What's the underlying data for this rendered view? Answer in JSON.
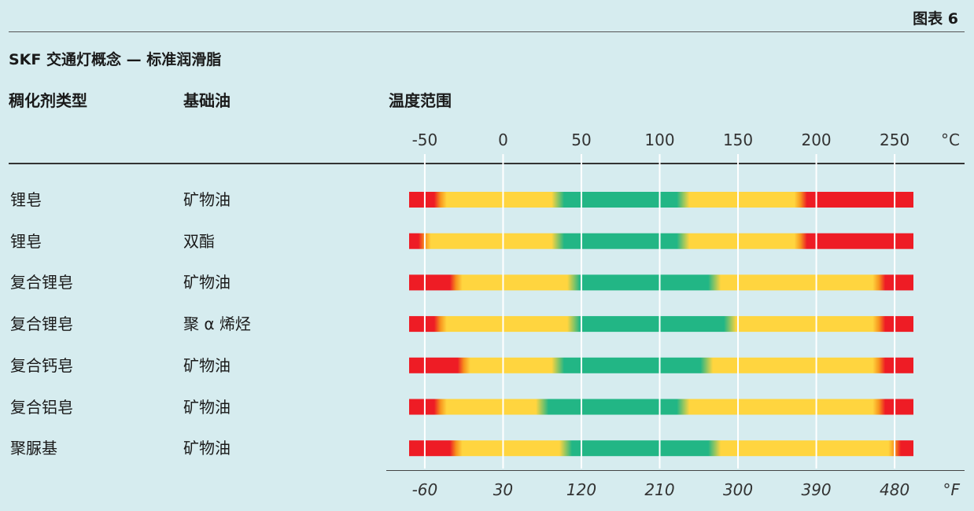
{
  "figure_label": "图表 6",
  "title": "SKF 交通灯概念 — 标准润滑脂",
  "headers": {
    "thickener": "稠化剂类型",
    "base_oil": "基础油",
    "temperature": "温度范围"
  },
  "colors": {
    "background": "#d6ecef",
    "red": "#ee1c25",
    "orange": "#f7941d",
    "yellow": "#ffd53f",
    "green": "#22b685",
    "gridline": "#ffffff"
  },
  "chart_data": {
    "type": "range-bar",
    "x_axis_top": {
      "unit": "°C",
      "ticks": [
        "-50",
        "0",
        "50",
        "100",
        "150",
        "200",
        "250"
      ]
    },
    "x_axis_bottom": {
      "unit": "°F",
      "ticks": [
        "-60",
        "30",
        "120",
        "210",
        "300",
        "390",
        "480"
      ]
    },
    "xlim_c": [
      -60,
      262
    ],
    "rows": [
      {
        "thickener": "锂皂",
        "base_oil": "矿物油",
        "zones": [
          {
            "color": "red",
            "from": -60,
            "to": -40
          },
          {
            "color": "yellow",
            "from": -40,
            "to": 35
          },
          {
            "color": "green",
            "from": 35,
            "to": 115
          },
          {
            "color": "yellow",
            "from": 115,
            "to": 190
          },
          {
            "color": "red",
            "from": 190,
            "to": 262
          }
        ]
      },
      {
        "thickener": "锂皂",
        "base_oil": "双酯",
        "zones": [
          {
            "color": "red",
            "from": -60,
            "to": -50
          },
          {
            "color": "yellow",
            "from": -50,
            "to": 35
          },
          {
            "color": "green",
            "from": 35,
            "to": 115
          },
          {
            "color": "yellow",
            "from": 115,
            "to": 190
          },
          {
            "color": "red",
            "from": 190,
            "to": 262
          }
        ]
      },
      {
        "thickener": "复合锂皂",
        "base_oil": "矿物油",
        "zones": [
          {
            "color": "red",
            "from": -60,
            "to": -30
          },
          {
            "color": "yellow",
            "from": -30,
            "to": 45
          },
          {
            "color": "green",
            "from": 45,
            "to": 135
          },
          {
            "color": "yellow",
            "from": 135,
            "to": 240
          },
          {
            "color": "red",
            "from": 240,
            "to": 262
          }
        ]
      },
      {
        "thickener": "复合锂皂",
        "base_oil": "聚 α 烯烃",
        "zones": [
          {
            "color": "red",
            "from": -60,
            "to": -40
          },
          {
            "color": "yellow",
            "from": -40,
            "to": 45
          },
          {
            "color": "green",
            "from": 45,
            "to": 145
          },
          {
            "color": "yellow",
            "from": 145,
            "to": 240
          },
          {
            "color": "red",
            "from": 240,
            "to": 262
          }
        ]
      },
      {
        "thickener": "复合钙皂",
        "base_oil": "矿物油",
        "zones": [
          {
            "color": "red",
            "from": -60,
            "to": -25
          },
          {
            "color": "yellow",
            "from": -25,
            "to": 35
          },
          {
            "color": "green",
            "from": 35,
            "to": 130
          },
          {
            "color": "yellow",
            "from": 130,
            "to": 240
          },
          {
            "color": "red",
            "from": 240,
            "to": 262
          }
        ]
      },
      {
        "thickener": "复合铝皂",
        "base_oil": "矿物油",
        "zones": [
          {
            "color": "red",
            "from": -60,
            "to": -40
          },
          {
            "color": "yellow",
            "from": -40,
            "to": 25
          },
          {
            "color": "green",
            "from": 25,
            "to": 115
          },
          {
            "color": "yellow",
            "from": 115,
            "to": 240
          },
          {
            "color": "red",
            "from": 240,
            "to": 262
          }
        ]
      },
      {
        "thickener": "聚脲基",
        "base_oil": "矿物油",
        "zones": [
          {
            "color": "red",
            "from": -60,
            "to": -30
          },
          {
            "color": "yellow",
            "from": -30,
            "to": 40
          },
          {
            "color": "green",
            "from": 40,
            "to": 135
          },
          {
            "color": "yellow",
            "from": 135,
            "to": 250
          },
          {
            "color": "red",
            "from": 250,
            "to": 262
          }
        ]
      }
    ]
  }
}
